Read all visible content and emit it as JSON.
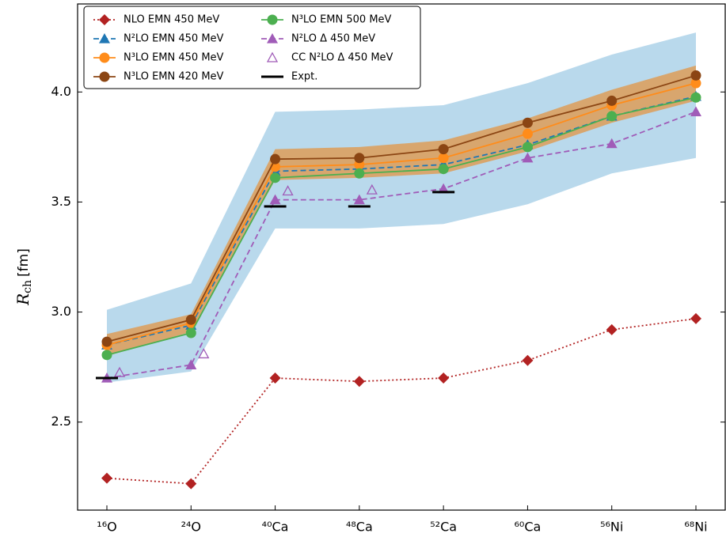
{
  "chart_data": {
    "type": "line",
    "y_label": {
      "symbol": "R",
      "subscript": "ch",
      "unit": "[fm]"
    },
    "categories": [
      "¹⁶O",
      "²⁴O",
      "⁴⁰Ca",
      "⁴⁸Ca",
      "⁵²Ca",
      "⁶⁰Ca",
      "⁵⁶Ni",
      "⁶⁸Ni"
    ],
    "ylim": [
      2.1,
      4.4
    ],
    "yticks": [
      2.5,
      {
        "value": 3,
        "label": "3.0"
      },
      3.5,
      {
        "value": 4,
        "label": "4.0"
      }
    ],
    "bands": [
      {
        "color": "#b9d9ec",
        "lower": [
          2.68,
          2.73,
          3.38,
          3.38,
          3.4,
          3.49,
          3.63,
          3.7
        ],
        "upper": [
          3.01,
          3.13,
          3.91,
          3.92,
          3.94,
          4.04,
          4.17,
          4.27
        ]
      },
      {
        "color": "#d8a66e",
        "lower": [
          2.8,
          2.91,
          3.6,
          3.61,
          3.63,
          3.73,
          3.86,
          3.96
        ],
        "upper": [
          2.9,
          2.99,
          3.74,
          3.75,
          3.78,
          3.88,
          4.01,
          4.12
        ]
      }
    ],
    "series": [
      {
        "name": "NLO EMN 450 MeV",
        "color": "#b22222",
        "marker": "diamond",
        "line": "dotted",
        "values": [
          2.245,
          2.22,
          2.7,
          2.685,
          2.7,
          2.78,
          2.92,
          2.97
        ]
      },
      {
        "name": "N²LO EMN 450 MeV",
        "color": "#1f77b4",
        "marker": "triangle",
        "line": "dashed",
        "values": [
          2.85,
          2.94,
          3.64,
          3.65,
          3.67,
          3.76,
          3.89,
          3.98
        ]
      },
      {
        "name": "N³LO EMN 450 MeV",
        "color": "#ff8c1a",
        "marker": "circle",
        "line": "solid",
        "values": [
          2.85,
          2.95,
          3.66,
          3.67,
          3.7,
          3.81,
          3.94,
          4.04
        ]
      },
      {
        "name": "N³LO EMN 420 MeV",
        "color": "#8b4513",
        "marker": "circle",
        "line": "solid",
        "values": [
          2.865,
          2.965,
          3.695,
          3.7,
          3.74,
          3.86,
          3.96,
          4.075
        ]
      },
      {
        "name": "N³LO EMN 500 MeV",
        "color": "#4caf50",
        "marker": "circle",
        "line": "solid",
        "values": [
          2.805,
          2.905,
          3.61,
          3.63,
          3.65,
          3.75,
          3.89,
          3.975
        ]
      },
      {
        "name": "N²LO Δ 450 MeV",
        "color": "#a05cb8",
        "marker": "triangle",
        "line": "dashed",
        "values": [
          2.7,
          2.76,
          3.51,
          3.51,
          3.56,
          3.7,
          3.765,
          3.91
        ]
      },
      {
        "name": "CC N²LO Δ 450 MeV",
        "color": "#a05cb8",
        "marker": "triangle-open",
        "line": "none",
        "values": [
          2.725,
          2.81,
          3.55,
          3.555,
          null,
          null,
          null,
          null
        ]
      },
      {
        "name": "Expt.",
        "color": "#000000",
        "marker": "hbar",
        "line": "none",
        "values": [
          2.7,
          null,
          3.48,
          3.48,
          3.545,
          null,
          null,
          null
        ]
      }
    ]
  }
}
